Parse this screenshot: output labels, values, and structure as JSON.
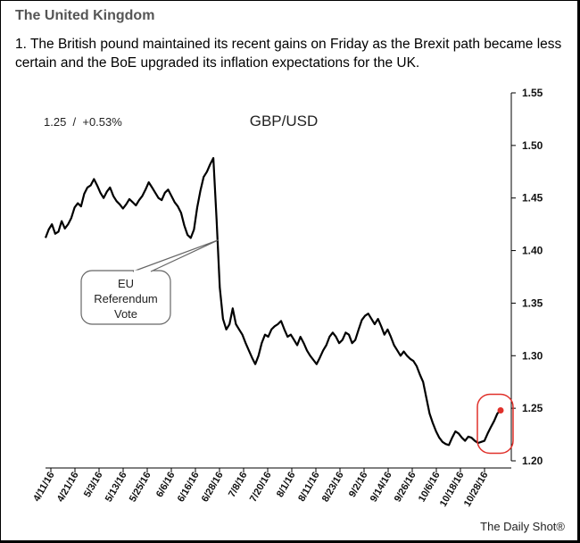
{
  "header": {
    "section_title": "The United Kingdom",
    "description": "1. The British pound maintained its recent gains on Friday as the Brexit path became less certain and the BoE upgraded its inflation expectations for the UK."
  },
  "footer": {
    "credit": "The Daily Shot®"
  },
  "colors": {
    "line": "#000000",
    "highlight": "#e0302a",
    "callout_border": "#666666"
  },
  "chart_data": {
    "type": "line",
    "title": "GBP/USD",
    "current_value_label": "1.25  /  +0.53%",
    "xlabel": "",
    "ylabel": "",
    "ylim": [
      1.2,
      1.55
    ],
    "yticks": [
      "1.20",
      "1.25",
      "1.30",
      "1.35",
      "1.40",
      "1.45",
      "1.50",
      "1.55"
    ],
    "xtick_labels": [
      "4/11/16",
      "4/21/16",
      "5/3/16",
      "5/13/16",
      "5/25/16",
      "6/6/16",
      "6/16/16",
      "6/28/16",
      "7/8/16",
      "7/20/16",
      "8/1/16",
      "8/11/16",
      "8/23/16",
      "9/2/16",
      "9/14/16",
      "9/26/16",
      "10/6/16",
      "10/18/16",
      "10/28/16"
    ],
    "annotation": {
      "lines": [
        "EU",
        "Referendum",
        "Vote"
      ],
      "x_index": 53.5,
      "y": 1.41
    },
    "highlight_last_point": true,
    "series": [
      {
        "name": "GBP/USD",
        "values": [
          1.412,
          1.42,
          1.425,
          1.416,
          1.418,
          1.428,
          1.421,
          1.425,
          1.431,
          1.441,
          1.445,
          1.442,
          1.454,
          1.46,
          1.462,
          1.468,
          1.462,
          1.455,
          1.45,
          1.456,
          1.46,
          1.452,
          1.447,
          1.444,
          1.44,
          1.444,
          1.449,
          1.446,
          1.443,
          1.448,
          1.452,
          1.458,
          1.465,
          1.46,
          1.455,
          1.45,
          1.448,
          1.455,
          1.458,
          1.452,
          1.446,
          1.442,
          1.436,
          1.424,
          1.415,
          1.412,
          1.42,
          1.441,
          1.457,
          1.47,
          1.475,
          1.482,
          1.488,
          1.43,
          1.365,
          1.335,
          1.325,
          1.33,
          1.345,
          1.33,
          1.325,
          1.32,
          1.312,
          1.305,
          1.298,
          1.292,
          1.3,
          1.312,
          1.32,
          1.318,
          1.325,
          1.328,
          1.33,
          1.333,
          1.325,
          1.318,
          1.32,
          1.315,
          1.31,
          1.318,
          1.312,
          1.305,
          1.3,
          1.296,
          1.292,
          1.298,
          1.305,
          1.31,
          1.318,
          1.322,
          1.318,
          1.312,
          1.315,
          1.322,
          1.32,
          1.312,
          1.315,
          1.325,
          1.334,
          1.338,
          1.34,
          1.335,
          1.33,
          1.335,
          1.328,
          1.32,
          1.325,
          1.318,
          1.31,
          1.305,
          1.3,
          1.304,
          1.3,
          1.297,
          1.295,
          1.29,
          1.282,
          1.275,
          1.26,
          1.245,
          1.236,
          1.228,
          1.222,
          1.218,
          1.216,
          1.215,
          1.222,
          1.228,
          1.226,
          1.222,
          1.219,
          1.223,
          1.222,
          1.219,
          1.217,
          1.218,
          1.219,
          1.226,
          1.232,
          1.238,
          1.245,
          1.248
        ]
      }
    ]
  }
}
